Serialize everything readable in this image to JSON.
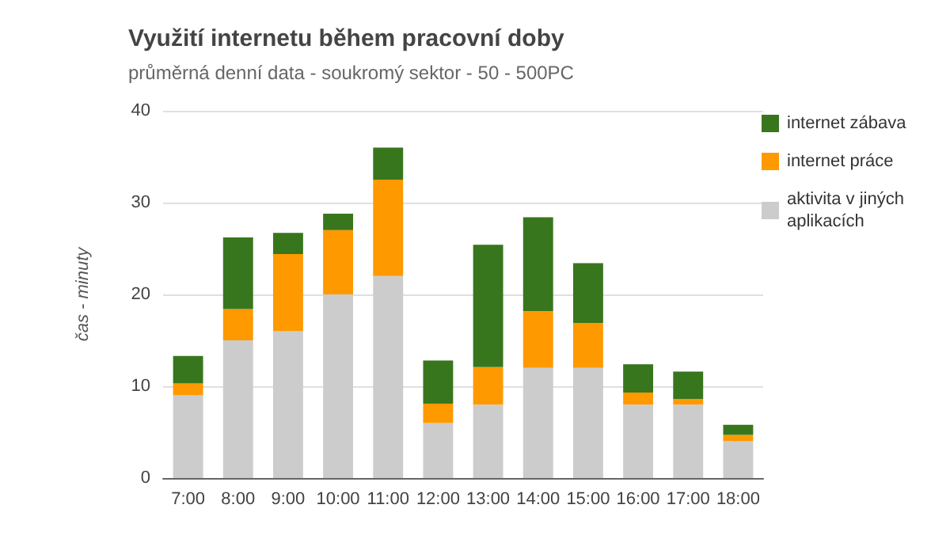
{
  "chart_data": {
    "type": "bar",
    "stacked": true,
    "title": "Využití internetu během pracovní doby",
    "subtitle": "průměrná denní data - soukromý sektor - 50 - 500PC",
    "ylabel": "čas - minuty",
    "categories": [
      "7:00",
      "8:00",
      "9:00",
      "10:00",
      "11:00",
      "12:00",
      "13:00",
      "14:00",
      "15:00",
      "16:00",
      "17:00",
      "18:00"
    ],
    "series": [
      {
        "name": "aktivita v jiných aplikacích",
        "color": "#cccccc",
        "values": [
          9,
          15,
          16,
          20,
          22,
          6,
          8,
          12,
          12,
          8,
          8,
          4
        ]
      },
      {
        "name": "internet práce",
        "color": "#ff9900",
        "values": [
          1.3,
          3.4,
          8.4,
          7,
          10.5,
          2.1,
          4.1,
          6.2,
          4.9,
          1.3,
          0.6,
          0.7
        ]
      },
      {
        "name": "internet zábava",
        "color": "#38761d",
        "values": [
          3,
          7.8,
          2.3,
          1.8,
          3.5,
          4.7,
          13.3,
          10.2,
          6.5,
          3.1,
          3,
          1.1
        ]
      }
    ],
    "ylim": [
      0,
      40
    ],
    "yticks": [
      0,
      10,
      20,
      30,
      40
    ],
    "grid": "y",
    "legend": "top right"
  }
}
